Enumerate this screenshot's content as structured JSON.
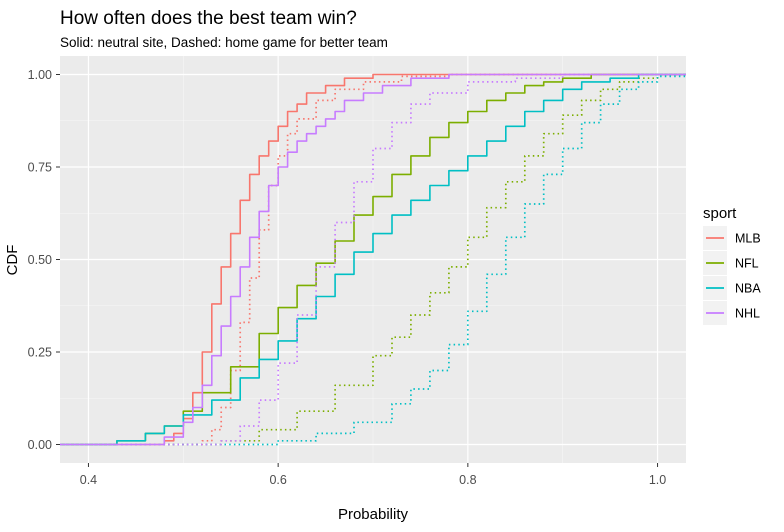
{
  "chart_data": {
    "type": "line",
    "title": "How often does the best team win?",
    "subtitle": "Solid: neutral site, Dashed: home game for better team",
    "xlabel": "Probability",
    "ylabel": "CDF",
    "xlim": [
      0.37,
      1.03
    ],
    "ylim": [
      -0.05,
      1.05
    ],
    "x_ticks": [
      0.4,
      0.6,
      0.8,
      1.0
    ],
    "x_tick_labels": [
      "0.4",
      "0.6",
      "0.8",
      "1.0"
    ],
    "y_ticks": [
      0,
      0.25,
      0.5,
      0.75,
      1.0
    ],
    "y_tick_labels": [
      "0.00",
      "0.25",
      "0.50",
      "0.75",
      "1.00"
    ],
    "grid": true,
    "legend": {
      "title": "sport",
      "placement": "right",
      "entries": [
        "MLB",
        "NFL",
        "NBA",
        "NHL"
      ]
    },
    "series": [
      {
        "name": "MLB",
        "condition": "Solid",
        "style": "solid",
        "color": "#F8766D",
        "points": [
          [
            0.37,
            0
          ],
          [
            0.46,
            0
          ],
          [
            0.48,
            0.01
          ],
          [
            0.49,
            0.03
          ],
          [
            0.5,
            0.07
          ],
          [
            0.51,
            0.14
          ],
          [
            0.52,
            0.25
          ],
          [
            0.53,
            0.38
          ],
          [
            0.54,
            0.48
          ],
          [
            0.55,
            0.57
          ],
          [
            0.56,
            0.66
          ],
          [
            0.57,
            0.73
          ],
          [
            0.58,
            0.78
          ],
          [
            0.59,
            0.82
          ],
          [
            0.6,
            0.86
          ],
          [
            0.61,
            0.9
          ],
          [
            0.62,
            0.92
          ],
          [
            0.63,
            0.95
          ],
          [
            0.65,
            0.97
          ],
          [
            0.67,
            0.99
          ],
          [
            0.7,
            1.0
          ],
          [
            1.03,
            1.0
          ]
        ]
      },
      {
        "name": "MLB",
        "condition": "Dashed",
        "style": "dotted",
        "color": "#F8766D",
        "points": [
          [
            0.37,
            0
          ],
          [
            0.5,
            0
          ],
          [
            0.52,
            0.01
          ],
          [
            0.53,
            0.04
          ],
          [
            0.54,
            0.1
          ],
          [
            0.55,
            0.2
          ],
          [
            0.56,
            0.33
          ],
          [
            0.57,
            0.45
          ],
          [
            0.58,
            0.58
          ],
          [
            0.59,
            0.7
          ],
          [
            0.6,
            0.78
          ],
          [
            0.61,
            0.84
          ],
          [
            0.62,
            0.88
          ],
          [
            0.64,
            0.93
          ],
          [
            0.66,
            0.96
          ],
          [
            0.69,
            0.98
          ],
          [
            0.73,
            0.995
          ],
          [
            0.78,
            1.0
          ],
          [
            1.03,
            1.0
          ]
        ]
      },
      {
        "name": "NFL",
        "condition": "Solid",
        "style": "solid",
        "color": "#7CAE00",
        "points": [
          [
            0.37,
            0
          ],
          [
            0.43,
            0.01
          ],
          [
            0.46,
            0.03
          ],
          [
            0.48,
            0.05
          ],
          [
            0.5,
            0.09
          ],
          [
            0.52,
            0.14
          ],
          [
            0.55,
            0.21
          ],
          [
            0.58,
            0.3
          ],
          [
            0.6,
            0.37
          ],
          [
            0.62,
            0.43
          ],
          [
            0.64,
            0.49
          ],
          [
            0.66,
            0.55
          ],
          [
            0.68,
            0.62
          ],
          [
            0.7,
            0.67
          ],
          [
            0.72,
            0.73
          ],
          [
            0.74,
            0.78
          ],
          [
            0.76,
            0.83
          ],
          [
            0.78,
            0.87
          ],
          [
            0.8,
            0.9
          ],
          [
            0.82,
            0.93
          ],
          [
            0.84,
            0.95
          ],
          [
            0.86,
            0.97
          ],
          [
            0.88,
            0.98
          ],
          [
            0.9,
            0.99
          ],
          [
            0.93,
            1.0
          ],
          [
            1.03,
            1.0
          ]
        ]
      },
      {
        "name": "NFL",
        "condition": "Dashed",
        "style": "dotted",
        "color": "#7CAE00",
        "points": [
          [
            0.37,
            0
          ],
          [
            0.5,
            0
          ],
          [
            0.54,
            0.01
          ],
          [
            0.58,
            0.04
          ],
          [
            0.62,
            0.09
          ],
          [
            0.66,
            0.16
          ],
          [
            0.7,
            0.24
          ],
          [
            0.72,
            0.29
          ],
          [
            0.74,
            0.35
          ],
          [
            0.76,
            0.41
          ],
          [
            0.78,
            0.48
          ],
          [
            0.8,
            0.56
          ],
          [
            0.82,
            0.64
          ],
          [
            0.84,
            0.71
          ],
          [
            0.86,
            0.78
          ],
          [
            0.88,
            0.84
          ],
          [
            0.9,
            0.89
          ],
          [
            0.92,
            0.93
          ],
          [
            0.94,
            0.96
          ],
          [
            0.96,
            0.98
          ],
          [
            0.98,
            0.99
          ],
          [
            1.0,
            1.0
          ],
          [
            1.03,
            1.0
          ]
        ]
      },
      {
        "name": "NBA",
        "condition": "Solid",
        "style": "solid",
        "color": "#00BFC4",
        "points": [
          [
            0.37,
            0
          ],
          [
            0.43,
            0.01
          ],
          [
            0.46,
            0.03
          ],
          [
            0.48,
            0.05
          ],
          [
            0.5,
            0.08
          ],
          [
            0.53,
            0.12
          ],
          [
            0.56,
            0.18
          ],
          [
            0.58,
            0.23
          ],
          [
            0.6,
            0.28
          ],
          [
            0.62,
            0.34
          ],
          [
            0.64,
            0.4
          ],
          [
            0.66,
            0.46
          ],
          [
            0.68,
            0.52
          ],
          [
            0.7,
            0.57
          ],
          [
            0.72,
            0.62
          ],
          [
            0.74,
            0.66
          ],
          [
            0.76,
            0.7
          ],
          [
            0.78,
            0.74
          ],
          [
            0.8,
            0.78
          ],
          [
            0.82,
            0.82
          ],
          [
            0.84,
            0.86
          ],
          [
            0.86,
            0.9
          ],
          [
            0.88,
            0.93
          ],
          [
            0.9,
            0.96
          ],
          [
            0.92,
            0.98
          ],
          [
            0.95,
            0.99
          ],
          [
            0.98,
            1.0
          ],
          [
            1.03,
            1.0
          ]
        ]
      },
      {
        "name": "NBA",
        "condition": "Dashed",
        "style": "dotted",
        "color": "#00BFC4",
        "points": [
          [
            0.37,
            0
          ],
          [
            0.55,
            0
          ],
          [
            0.6,
            0.01
          ],
          [
            0.64,
            0.03
          ],
          [
            0.68,
            0.06
          ],
          [
            0.72,
            0.11
          ],
          [
            0.74,
            0.15
          ],
          [
            0.76,
            0.2
          ],
          [
            0.78,
            0.27
          ],
          [
            0.8,
            0.36
          ],
          [
            0.82,
            0.46
          ],
          [
            0.84,
            0.56
          ],
          [
            0.86,
            0.65
          ],
          [
            0.88,
            0.73
          ],
          [
            0.9,
            0.8
          ],
          [
            0.92,
            0.87
          ],
          [
            0.94,
            0.92
          ],
          [
            0.96,
            0.96
          ],
          [
            0.98,
            0.98
          ],
          [
            1.0,
            0.995
          ],
          [
            1.03,
            1.0
          ]
        ]
      },
      {
        "name": "NHL",
        "condition": "Solid",
        "style": "solid",
        "color": "#C77CFF",
        "points": [
          [
            0.37,
            0
          ],
          [
            0.46,
            0
          ],
          [
            0.48,
            0.02
          ],
          [
            0.5,
            0.06
          ],
          [
            0.51,
            0.1
          ],
          [
            0.52,
            0.16
          ],
          [
            0.53,
            0.24
          ],
          [
            0.54,
            0.32
          ],
          [
            0.55,
            0.4
          ],
          [
            0.56,
            0.48
          ],
          [
            0.57,
            0.56
          ],
          [
            0.58,
            0.63
          ],
          [
            0.59,
            0.7
          ],
          [
            0.6,
            0.75
          ],
          [
            0.61,
            0.79
          ],
          [
            0.62,
            0.82
          ],
          [
            0.63,
            0.84
          ],
          [
            0.64,
            0.86
          ],
          [
            0.65,
            0.88
          ],
          [
            0.66,
            0.9
          ],
          [
            0.67,
            0.93
          ],
          [
            0.69,
            0.95
          ],
          [
            0.71,
            0.97
          ],
          [
            0.74,
            0.99
          ],
          [
            0.78,
            1.0
          ],
          [
            1.03,
            1.0
          ]
        ]
      },
      {
        "name": "NHL",
        "condition": "Dashed",
        "style": "dotted",
        "color": "#C77CFF",
        "points": [
          [
            0.37,
            0
          ],
          [
            0.5,
            0
          ],
          [
            0.54,
            0.01
          ],
          [
            0.56,
            0.05
          ],
          [
            0.58,
            0.12
          ],
          [
            0.6,
            0.22
          ],
          [
            0.62,
            0.35
          ],
          [
            0.64,
            0.48
          ],
          [
            0.66,
            0.6
          ],
          [
            0.68,
            0.71
          ],
          [
            0.7,
            0.8
          ],
          [
            0.72,
            0.87
          ],
          [
            0.74,
            0.92
          ],
          [
            0.76,
            0.95
          ],
          [
            0.8,
            0.98
          ],
          [
            0.85,
            0.99
          ],
          [
            0.9,
            1.0
          ],
          [
            1.03,
            1.0
          ]
        ]
      }
    ]
  }
}
